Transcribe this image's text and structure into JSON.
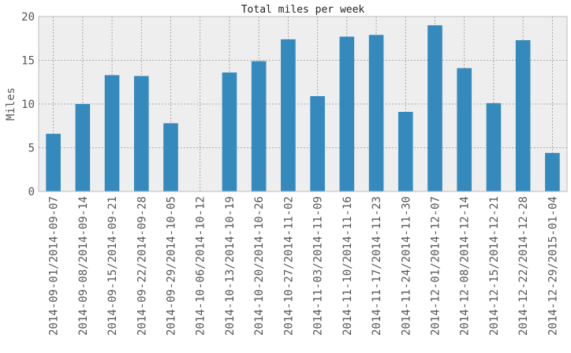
{
  "chart_data": {
    "type": "bar",
    "title": "Total miles per week",
    "xlabel": "",
    "ylabel": "Miles",
    "ylim": [
      0,
      20
    ],
    "yticks": [
      0,
      5,
      10,
      15,
      20
    ],
    "grid": true,
    "colors": {
      "bar": "#348abd",
      "plot_background": "#eeeeee",
      "grid": "#999999",
      "axes_edge": "#bcbcbc"
    },
    "categories": [
      "2014-09-01/2014-09-07",
      "2014-09-08/2014-09-14",
      "2014-09-15/2014-09-21",
      "2014-09-22/2014-09-28",
      "2014-09-29/2014-10-05",
      "2014-10-06/2014-10-12",
      "2014-10-13/2014-10-19",
      "2014-10-20/2014-10-26",
      "2014-10-27/2014-11-02",
      "2014-11-03/2014-11-09",
      "2014-11-10/2014-11-16",
      "2014-11-17/2014-11-23",
      "2014-11-24/2014-11-30",
      "2014-12-01/2014-12-07",
      "2014-12-08/2014-12-14",
      "2014-12-15/2014-12-21",
      "2014-12-22/2014-12-28",
      "2014-12-29/2015-01-04"
    ],
    "values": [
      6.6,
      10.0,
      13.3,
      13.2,
      7.8,
      0,
      13.6,
      14.9,
      17.4,
      10.9,
      17.7,
      17.9,
      9.1,
      19.0,
      14.1,
      10.1,
      17.3,
      4.4
    ]
  }
}
